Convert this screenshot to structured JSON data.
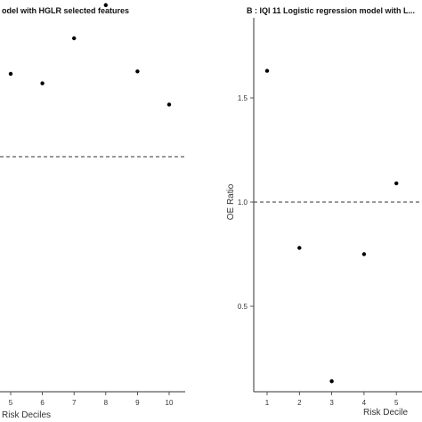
{
  "chart_data": [
    {
      "type": "scatter",
      "title": "odel with HGLR selected features",
      "xlabel": "Risk Deciles",
      "ylabel": "",
      "x_ticks": [
        "5",
        "6",
        "7",
        "8",
        "9",
        "10"
      ],
      "x": [
        5,
        6,
        7,
        8,
        9,
        10
      ],
      "y": [
        1.35,
        1.31,
        1.5,
        1.64,
        1.36,
        1.22
      ],
      "reference_line": 1.0,
      "grid": false
    },
    {
      "type": "scatter",
      "title": "B : IQI 11 Logistic regression model with L...",
      "xlabel": "Risk Decile",
      "ylabel": "OE Ratio",
      "y_ticks": [
        "0.5",
        "1.0",
        "1.5"
      ],
      "ylim": [
        0.05,
        1.85
      ],
      "x_ticks": [
        "1",
        "2",
        "3",
        "4",
        "5"
      ],
      "x": [
        1,
        2,
        3,
        4,
        5
      ],
      "y": [
        1.63,
        0.78,
        0.14,
        0.75,
        1.09
      ],
      "reference_line": 1.0,
      "grid": false
    }
  ]
}
